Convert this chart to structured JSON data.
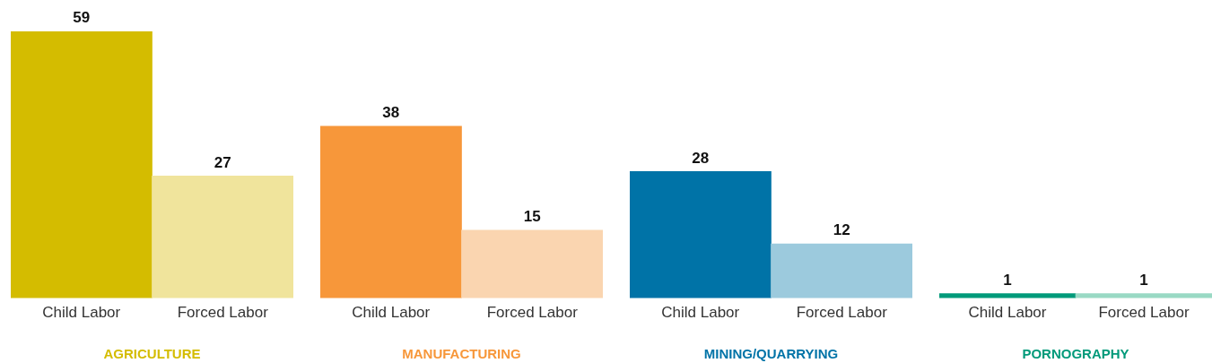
{
  "chart_data": [
    {
      "type": "bar",
      "title": "AGRICULTURE",
      "categories": [
        "Child Labor",
        "Forced Labor"
      ],
      "values": [
        59,
        27
      ],
      "colors": [
        "#d4bc00",
        "#f0e49c"
      ],
      "data_labels": true,
      "tick_labels": "x",
      "grid": false,
      "legend": false
    },
    {
      "type": "bar",
      "title": "MANUFACTURING",
      "categories": [
        "Child Labor",
        "Forced Labor"
      ],
      "values": [
        38,
        15
      ],
      "colors": [
        "#f7973a",
        "#fad5b0"
      ],
      "data_labels": true,
      "tick_labels": "x",
      "grid": false,
      "legend": false
    },
    {
      "type": "bar",
      "title": "MINING/QUARRYING",
      "categories": [
        "Child Labor",
        "Forced Labor"
      ],
      "values": [
        28,
        12
      ],
      "colors": [
        "#0073a7",
        "#9ccadd"
      ],
      "data_labels": true,
      "tick_labels": "x",
      "grid": false,
      "legend": false
    },
    {
      "type": "bar",
      "title": "PORNOGRAPHY",
      "categories": [
        "Child Labor",
        "Forced Labor"
      ],
      "values": [
        1,
        1
      ],
      "colors": [
        "#009a7a",
        "#99d9c4"
      ],
      "data_labels": true,
      "tick_labels": "x",
      "grid": false,
      "legend": false
    }
  ]
}
